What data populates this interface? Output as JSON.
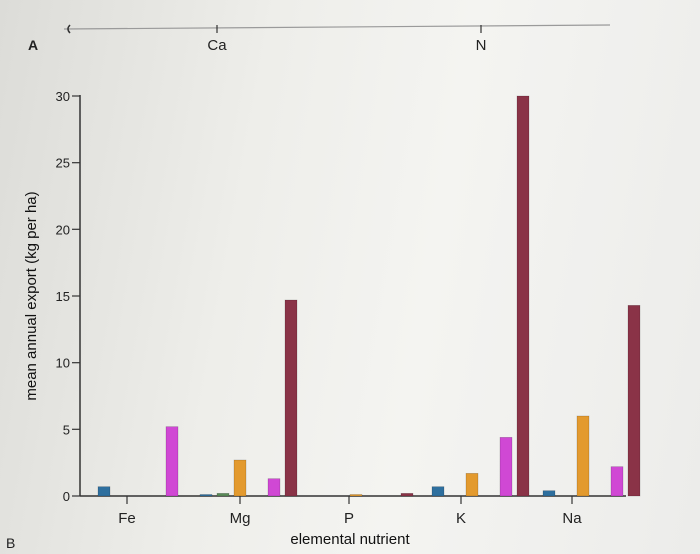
{
  "chart_data": {
    "type": "bar",
    "panel_labels": {
      "top": "A",
      "bottom": "B"
    },
    "top_panel_categories": [
      "Ca",
      "N"
    ],
    "categories": [
      "Fe",
      "Mg",
      "P",
      "K",
      "Na"
    ],
    "xlabel": "elemental nutrient",
    "ylabel": "mean annual export (kg per ha)",
    "ylim": [
      0,
      30
    ],
    "yticks": [
      0,
      5,
      10,
      15,
      20,
      25,
      30
    ],
    "series": [
      {
        "color": "#2e6f9e",
        "values": [
          0.7,
          0.1,
          0,
          0.7,
          0.4
        ]
      },
      {
        "color": "#5a8a58",
        "values": [
          0,
          0.2,
          0,
          0,
          0
        ]
      },
      {
        "color": "#e39a2e",
        "values": [
          0,
          2.7,
          0.1,
          1.7,
          6.0
        ]
      },
      {
        "color": "#a2399b",
        "values": [
          0,
          0,
          0,
          0,
          0
        ]
      },
      {
        "color": "#d048d4",
        "values": [
          5.2,
          1.3,
          0,
          4.4,
          2.2
        ]
      },
      {
        "color": "#8a3347",
        "values": [
          0,
          14.7,
          0.2,
          30.0,
          14.3
        ]
      }
    ],
    "grid": false,
    "legend": "none"
  }
}
